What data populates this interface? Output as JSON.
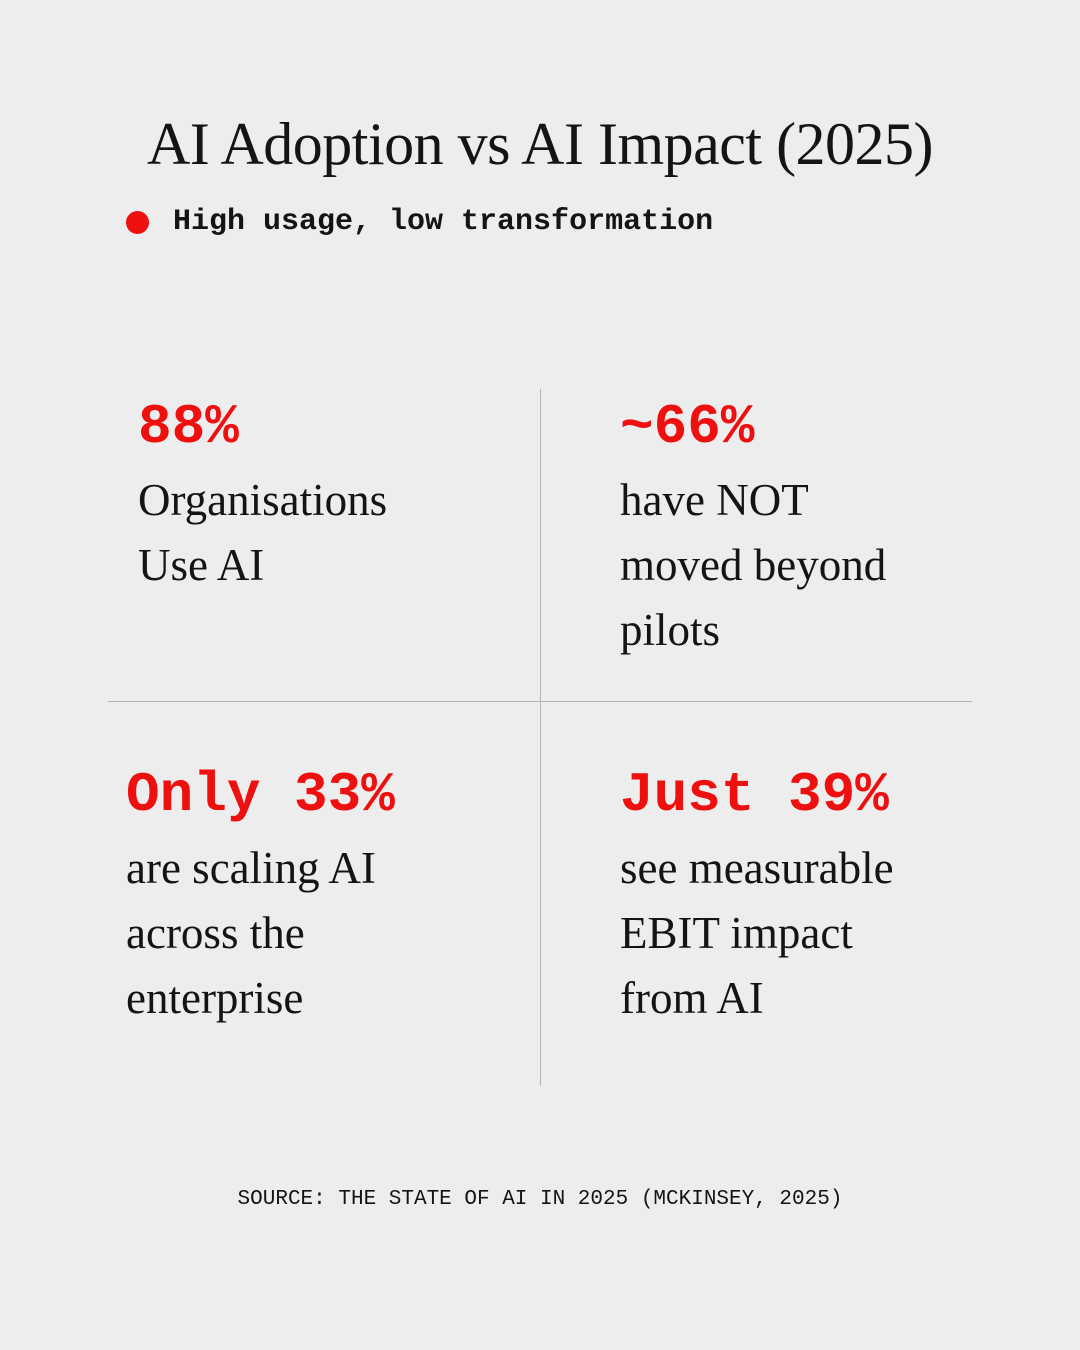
{
  "title": "AI Adoption vs AI Impact (2025)",
  "subtitle": "High usage, low transformation",
  "colors": {
    "background": "#ededed",
    "accent": "#ee0f0f",
    "text": "#141414",
    "divider": "#b4b4b4"
  },
  "stats": [
    {
      "value": "88%",
      "description": "Organisations\nUse AI"
    },
    {
      "value": "~66%",
      "description": "have NOT\nmoved beyond\npilots"
    },
    {
      "value": "Only 33%",
      "description": "are scaling AI\nacross the\nenterprise"
    },
    {
      "value": "Just 39%",
      "description": "see measurable\nEBIT impact\nfrom AI"
    }
  ],
  "source": "SOURCE: THE STATE OF AI IN 2025 (MCKINSEY, 2025)"
}
